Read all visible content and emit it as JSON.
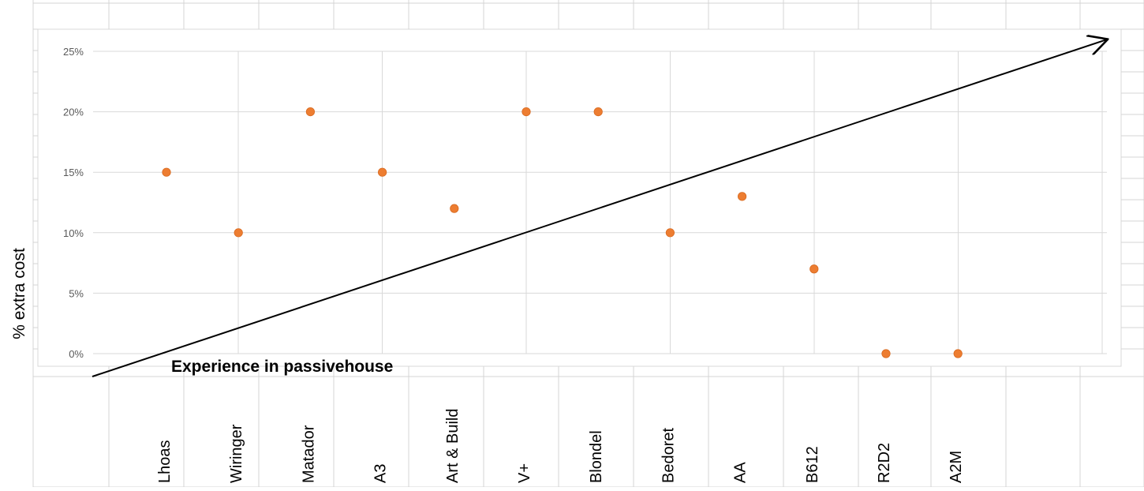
{
  "chart_data": {
    "type": "scatter",
    "title": "",
    "xlabel": "Experience in passivehouse",
    "ylabel": "% extra cost",
    "categories": [
      "Lhoas",
      "Wiringer",
      "Matador",
      "A3",
      "Art & Build",
      "V+",
      "Blondel",
      "Bedoret",
      "AA",
      "B612",
      "R2D2",
      "A2M"
    ],
    "values": [
      15,
      10,
      20,
      15,
      12,
      20,
      20,
      10,
      13,
      7,
      0,
      0
    ],
    "y_ticks": [
      "0%",
      "5%",
      "10%",
      "15%",
      "20%",
      "25%"
    ],
    "ylim": [
      0,
      25
    ],
    "grid": true,
    "legend": "none",
    "annotation": "arrow",
    "colors": {
      "marker": "#ED7D31",
      "grid": "#D9D9D9",
      "sheet_grid": "#D4D4D4",
      "axis_text": "#595959",
      "arrow": "#000000"
    }
  }
}
